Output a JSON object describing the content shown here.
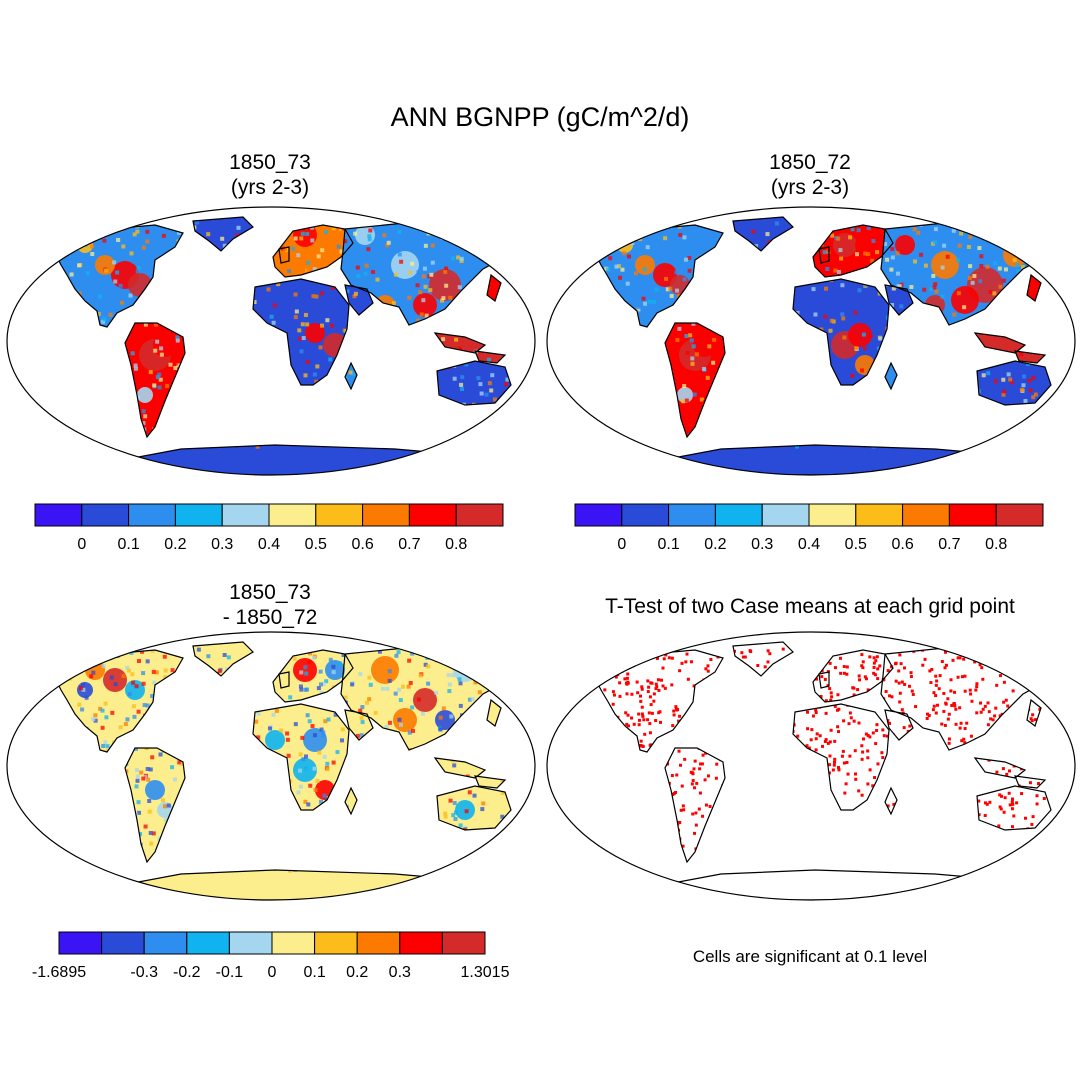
{
  "title": "ANN BGNPP (gC/m^2/d)",
  "panels": [
    {
      "id": "a",
      "title_lines": [
        "1850_73",
        "(yrs 2-3)"
      ]
    },
    {
      "id": "b",
      "title_lines": [
        "1850_72",
        "(yrs 2-3)"
      ]
    },
    {
      "id": "c",
      "title_lines": [
        "1850_73",
        "- 1850_72"
      ]
    },
    {
      "id": "d",
      "title_lines": [
        "T-Test of two Case means at each grid point"
      ]
    }
  ],
  "colorbar_main": {
    "colors": [
      "#3b14f5",
      "#2a4bd8",
      "#2e8ef0",
      "#10b3f0",
      "#a4d6f0",
      "#fcee8c",
      "#fcbc1a",
      "#fc7a00",
      "#fc0000",
      "#d42a2a"
    ],
    "labels": [
      "0",
      "0.1",
      "0.2",
      "0.3",
      "0.4",
      "0.5",
      "0.6",
      "0.7",
      "0.8"
    ]
  },
  "colorbar_diff": {
    "colors": [
      "#3b14f5",
      "#2a4bd8",
      "#2e8ef0",
      "#10b3f0",
      "#a4d6f0",
      "#fcee8c",
      "#fcbc1a",
      "#fc7a00",
      "#fc0000",
      "#d42a2a"
    ],
    "labels": [
      "-1.6895",
      "",
      "-0.3",
      "-0.2",
      "-0.1",
      "0",
      "0.1",
      "0.2",
      "0.3",
      "",
      "1.3015"
    ]
  },
  "significance_note": "Cells are significant at 0.1 level",
  "significance_color": "#ff0000"
}
